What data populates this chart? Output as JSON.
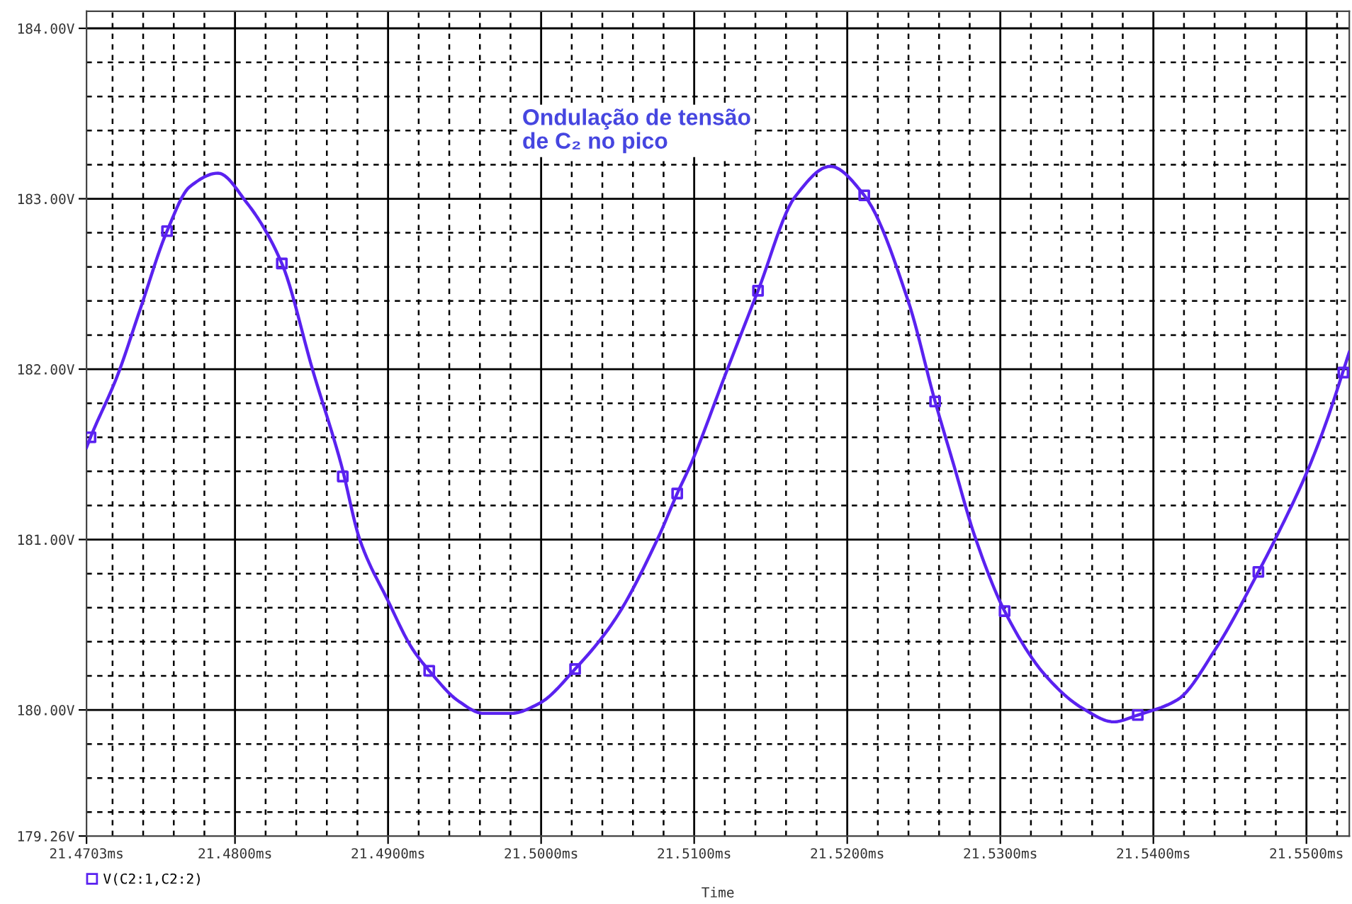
{
  "chart_data": {
    "type": "line",
    "xlabel": "Time",
    "annotations": [
      "Ondulação de tensão\nde C₂ no pico"
    ],
    "xlim": [
      21.4703,
      21.5528
    ],
    "ylim": [
      179.26,
      184.1
    ],
    "xticks": [
      {
        "value": 21.4703,
        "label": "21.4703ms"
      },
      {
        "value": 21.48,
        "label": "21.4800ms"
      },
      {
        "value": 21.49,
        "label": "21.4900ms"
      },
      {
        "value": 21.5,
        "label": "21.5000ms"
      },
      {
        "value": 21.51,
        "label": "21.5100ms"
      },
      {
        "value": 21.52,
        "label": "21.5200ms"
      },
      {
        "value": 21.53,
        "label": "21.5300ms"
      },
      {
        "value": 21.54,
        "label": "21.5400ms"
      },
      {
        "value": 21.55,
        "label": "21.5500ms"
      }
    ],
    "yticks": [
      {
        "value": 179.26,
        "label": "179.26V"
      },
      {
        "value": 180,
        "label": "180.00V"
      },
      {
        "value": 181,
        "label": "181.00V"
      },
      {
        "value": 182,
        "label": "182.00V"
      },
      {
        "value": 183,
        "label": "183.00V"
      },
      {
        "value": 184,
        "label": "184.00V"
      }
    ],
    "grid": true,
    "legend": "bottom left",
    "series": [
      {
        "color": "#5a22f0",
        "marker": "none",
        "x": [
          21.4703,
          21.47056,
          21.47231,
          21.4738,
          21.47556,
          21.47704,
          21.47889,
          21.48074,
          21.48306,
          21.48509,
          21.48694,
          21.48815,
          21.49,
          21.49158,
          21.49269,
          21.49463,
          21.49621,
          21.49806,
          21.49991,
          21.50222,
          21.50482,
          21.50759,
          21.50889,
          21.50982,
          21.51213,
          21.51417,
          21.51658,
          21.51889,
          21.52111,
          21.52398,
          21.52574,
          21.52695,
          21.52833,
          21.53028,
          21.53297,
          21.53537,
          21.53741,
          21.53898,
          21.54158,
          21.54408,
          21.54686,
          21.54806,
          21.5501,
          21.5513,
          21.5528
        ],
        "values": [
          181.54,
          181.6,
          181.96,
          182.35,
          182.81,
          183.07,
          183.15,
          182.98,
          182.62,
          181.99,
          181.44,
          181.0,
          180.64,
          180.36,
          180.23,
          180.05,
          179.98,
          179.98,
          180.04,
          180.24,
          180.53,
          181.0,
          181.27,
          181.45,
          181.99,
          182.46,
          183.01,
          183.19,
          183.02,
          182.4,
          181.81,
          181.44,
          181.02,
          180.58,
          180.2,
          180.01,
          179.93,
          179.97,
          180.06,
          180.36,
          180.81,
          181.02,
          181.41,
          181.69,
          182.1
        ]
      },
      {
        "type": "scatter",
        "name": "V(C2:1,C2:2)",
        "color": "#5a22f0",
        "marker": "square",
        "x": [
          21.47056,
          21.47556,
          21.48306,
          21.48704,
          21.49269,
          21.50222,
          21.50889,
          21.51417,
          21.52111,
          21.52574,
          21.53028,
          21.53898,
          21.54686,
          21.55241
        ],
        "values": [
          181.6,
          182.81,
          182.62,
          181.37,
          180.23,
          180.24,
          181.27,
          182.46,
          183.02,
          181.81,
          180.58,
          179.97,
          180.81,
          181.98
        ]
      }
    ]
  }
}
